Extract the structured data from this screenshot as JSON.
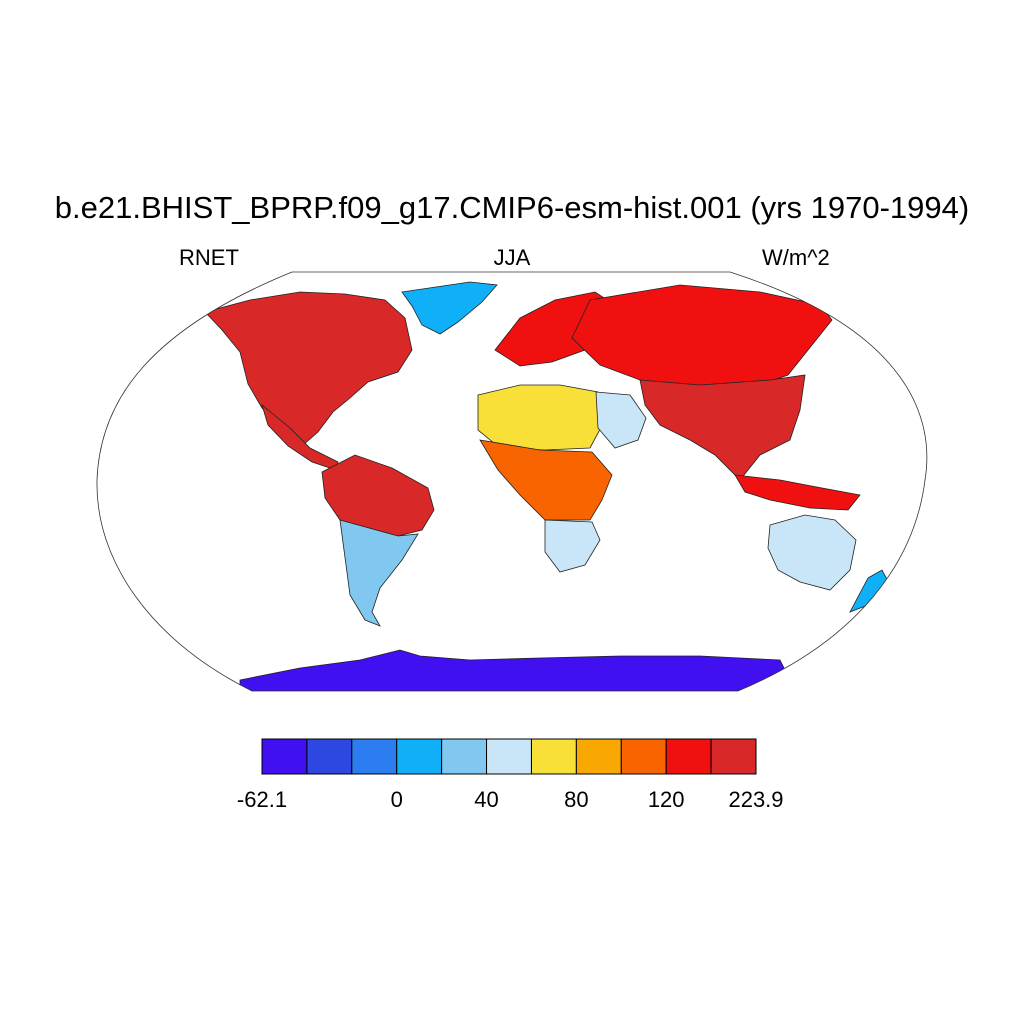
{
  "title": "b.e21.BHIST_BPRP.f09_g17.CMIP6-esm-hist.001 (yrs 1970-1994)",
  "left_label": "RNET",
  "center_label": "JJA",
  "right_label": "W/m^2",
  "colorbar": {
    "colors": [
      "#4010f0",
      "#2c48e0",
      "#2c7ef0",
      "#10b0f8",
      "#80c8f0",
      "#c8e6f8",
      "#f8e038",
      "#f8a800",
      "#f86400",
      "#f01010",
      "#d82828"
    ],
    "labels": [
      {
        "text": "-62.1",
        "boundary": 0
      },
      {
        "text": "0",
        "boundary": 3
      },
      {
        "text": "40",
        "boundary": 5
      },
      {
        "text": "80",
        "boundary": 7
      },
      {
        "text": "120",
        "boundary": 9
      },
      {
        "text": "223.9",
        "boundary": 11
      }
    ]
  },
  "chart_data": {
    "type": "heatmap",
    "title": "b.e21.BHIST_BPRP.f09_g17.CMIP6-esm-hist.001 (yrs 1970-1994)",
    "variable": "RNET",
    "season": "JJA",
    "units": "W/m^2",
    "projection": "Robinson",
    "value_range": [
      -62.1,
      223.9
    ],
    "colorbar_ticks": [
      -62.1,
      0,
      40,
      80,
      120,
      223.9
    ],
    "regions": [
      {
        "name": "North America",
        "level": 10
      },
      {
        "name": "Greenland",
        "level": 3
      },
      {
        "name": "Central America",
        "level": 10
      },
      {
        "name": "South America tropics",
        "level": 10
      },
      {
        "name": "South America south",
        "level": 4
      },
      {
        "name": "Europe",
        "level": 9
      },
      {
        "name": "Russia and Asia",
        "level": 9
      },
      {
        "name": "Sahara",
        "level": 6
      },
      {
        "name": "Central Africa",
        "level": 8
      },
      {
        "name": "Southern Africa",
        "level": 5
      },
      {
        "name": "Arabia",
        "level": 5
      },
      {
        "name": "South and East Asia",
        "level": 10
      },
      {
        "name": "Indonesia",
        "level": 9
      },
      {
        "name": "Australia",
        "level": 5
      },
      {
        "name": "New Zealand",
        "level": 3
      },
      {
        "name": "Antarctica",
        "level": 0
      }
    ]
  }
}
